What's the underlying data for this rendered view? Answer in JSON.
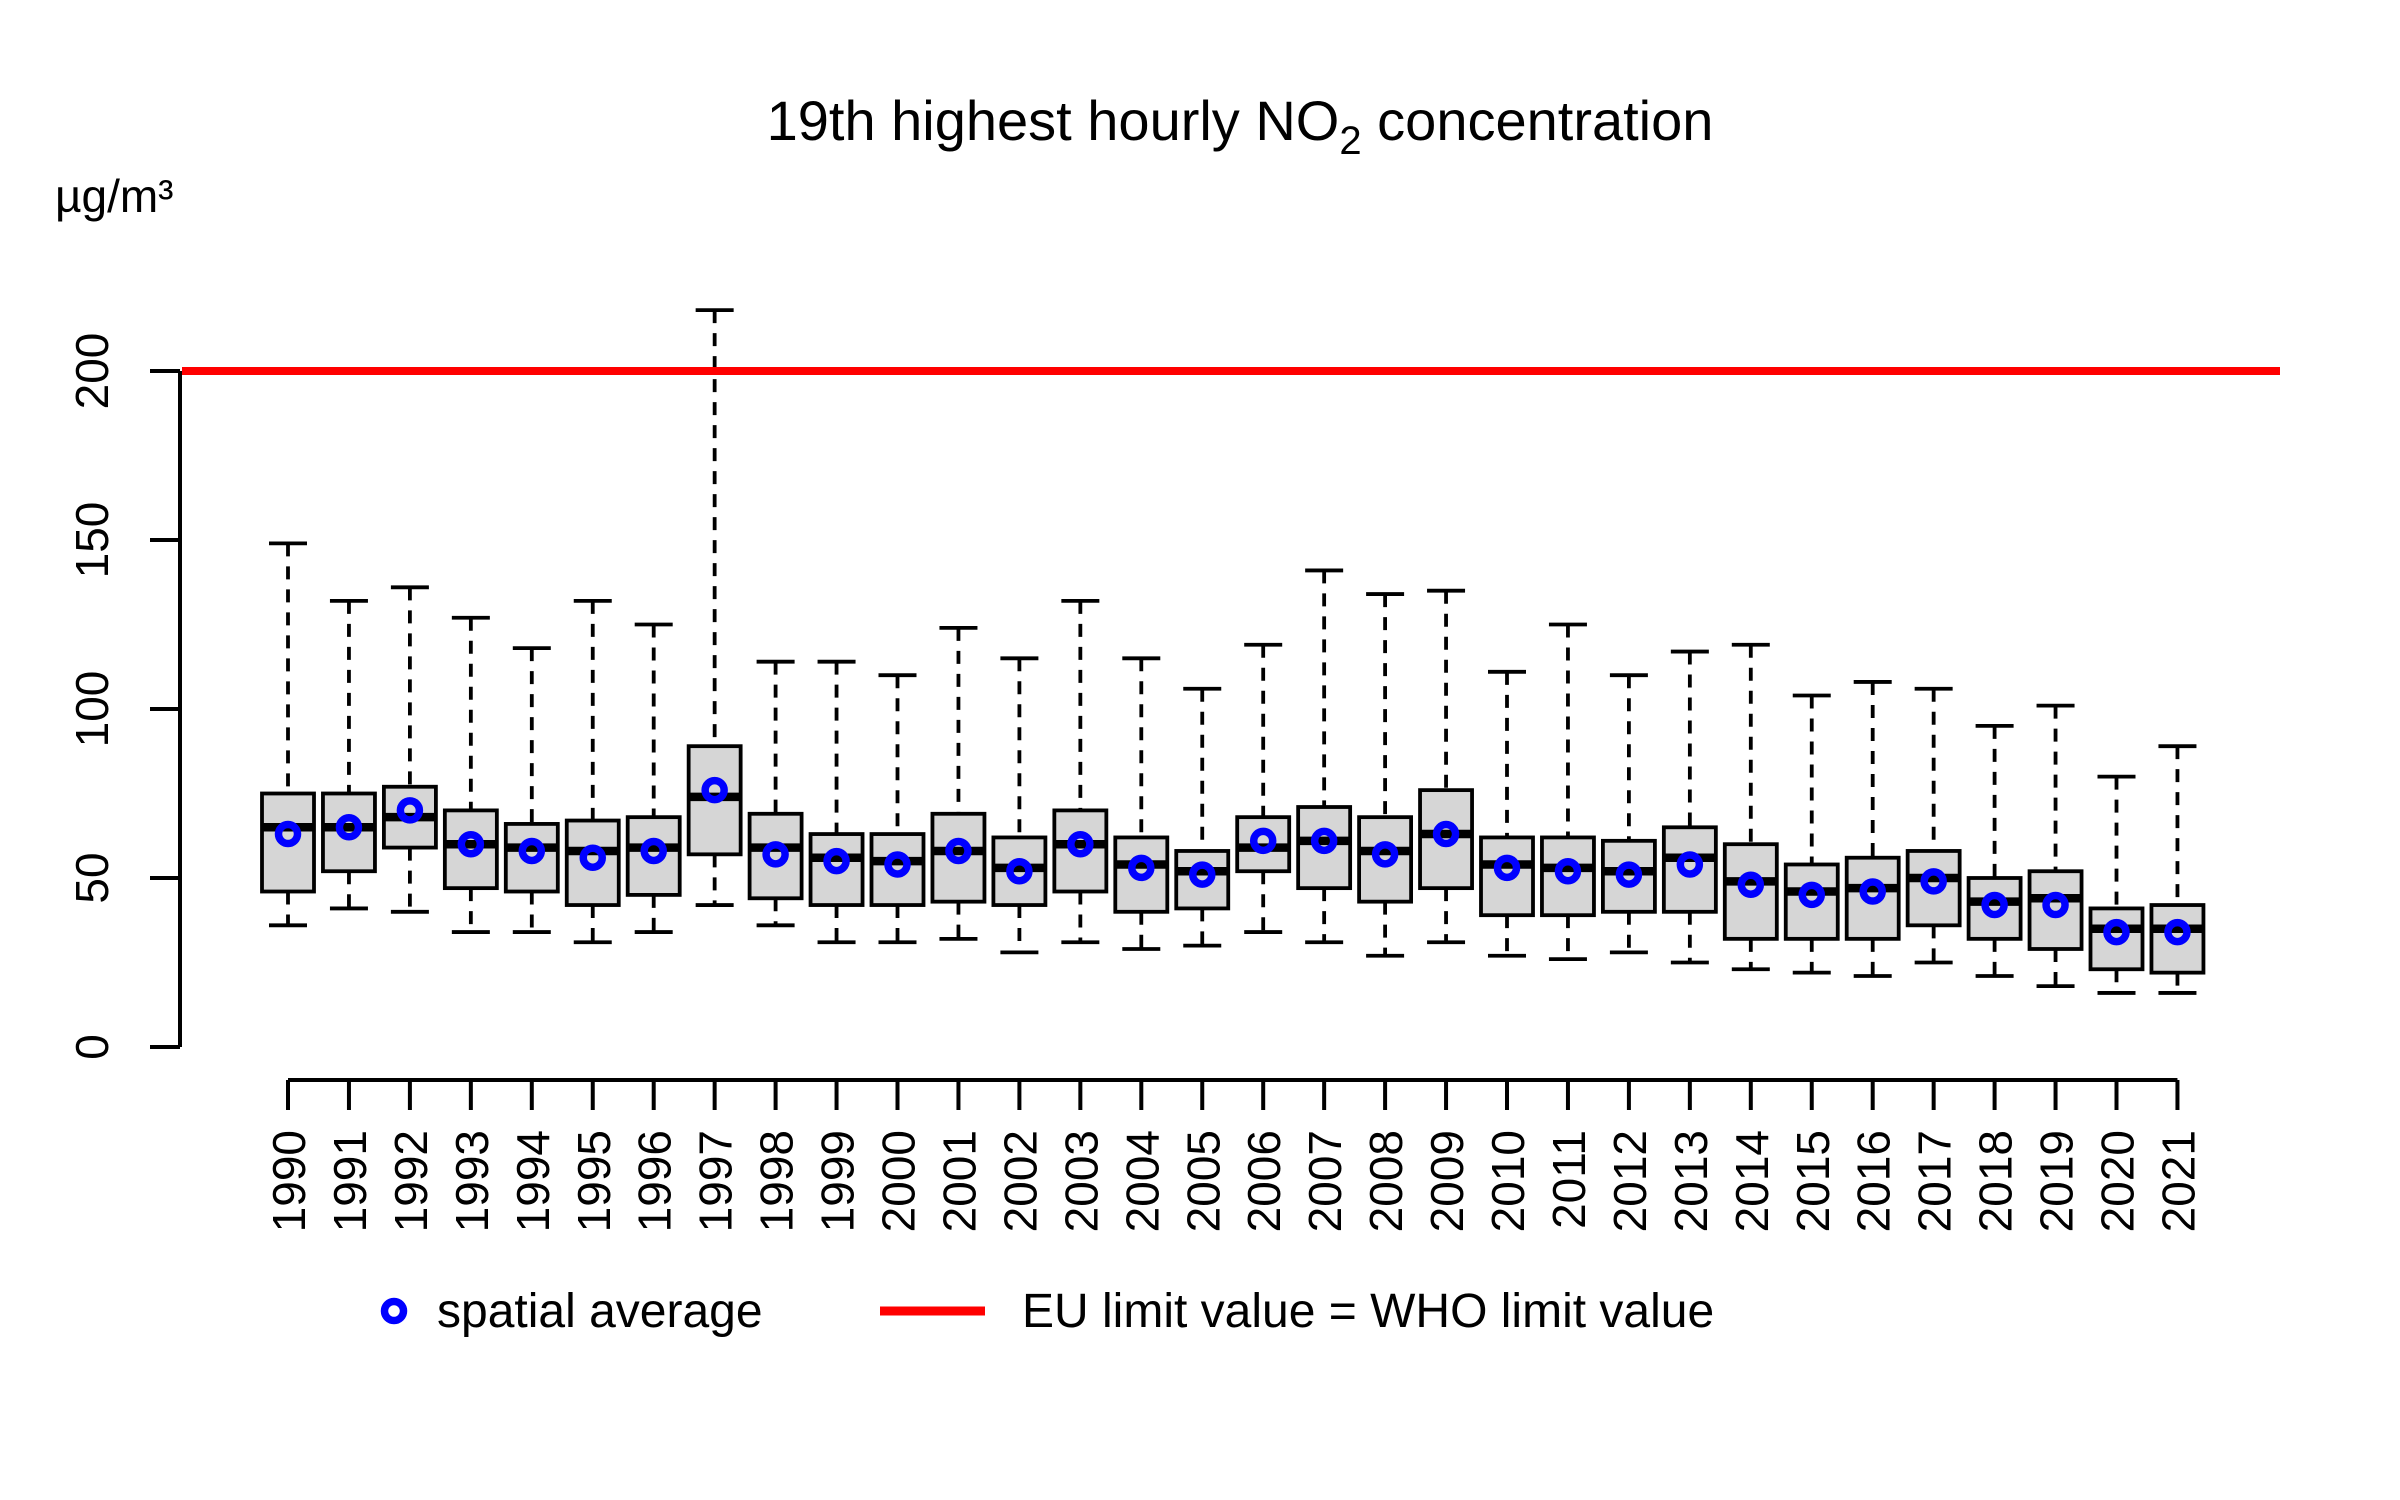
{
  "chart_data": {
    "type": "boxplot",
    "title": "19th highest hourly NO2 concentration",
    "title_parts": {
      "pre": "19th highest hourly NO",
      "sub": "2",
      "post": " concentration"
    },
    "ylabel": "µg/m³",
    "xlabel": "",
    "grid": false,
    "y_axis": {
      "ticks": [
        0,
        50,
        100,
        150,
        200
      ],
      "range": [
        0,
        220
      ]
    },
    "limit_line": {
      "value": 200
    },
    "legend": {
      "position": "bottom",
      "spatial_average_label": "spatial average",
      "limit_label": "EU limit value = WHO limit value"
    },
    "colors": {
      "box_fill": "#d6d6d6",
      "box_stroke": "#000000",
      "median": "#000000",
      "mean_marker": "#0000ff",
      "limit_line": "#ff0000",
      "axis": "#000000"
    },
    "categories": [
      1990,
      1991,
      1992,
      1993,
      1994,
      1995,
      1996,
      1997,
      1998,
      1999,
      2000,
      2001,
      2002,
      2003,
      2004,
      2005,
      2006,
      2007,
      2008,
      2009,
      2010,
      2011,
      2012,
      2013,
      2014,
      2015,
      2016,
      2017,
      2018,
      2019,
      2020,
      2021
    ],
    "series": [
      {
        "year": "1990",
        "min": 36,
        "q1": 46,
        "median": 65,
        "mean": 63,
        "q3": 75,
        "max": 149
      },
      {
        "year": "1991",
        "min": 41,
        "q1": 52,
        "median": 65,
        "mean": 65,
        "q3": 75,
        "max": 132
      },
      {
        "year": "1992",
        "min": 40,
        "q1": 59,
        "median": 68,
        "mean": 70,
        "q3": 77,
        "max": 136
      },
      {
        "year": "1993",
        "min": 34,
        "q1": 47,
        "median": 60,
        "mean": 60,
        "q3": 70,
        "max": 127
      },
      {
        "year": "1994",
        "min": 34,
        "q1": 46,
        "median": 59,
        "mean": 58,
        "q3": 66,
        "max": 118
      },
      {
        "year": "1995",
        "min": 31,
        "q1": 42,
        "median": 58,
        "mean": 56,
        "q3": 67,
        "max": 132
      },
      {
        "year": "1996",
        "min": 34,
        "q1": 45,
        "median": 59,
        "mean": 58,
        "q3": 68,
        "max": 125
      },
      {
        "year": "1997",
        "min": 42,
        "q1": 57,
        "median": 74,
        "mean": 76,
        "q3": 89,
        "max": 218
      },
      {
        "year": "1998",
        "min": 36,
        "q1": 44,
        "median": 59,
        "mean": 57,
        "q3": 69,
        "max": 114
      },
      {
        "year": "1999",
        "min": 31,
        "q1": 42,
        "median": 56,
        "mean": 55,
        "q3": 63,
        "max": 114
      },
      {
        "year": "2000",
        "min": 31,
        "q1": 42,
        "median": 55,
        "mean": 54,
        "q3": 63,
        "max": 110
      },
      {
        "year": "2001",
        "min": 32,
        "q1": 43,
        "median": 58,
        "mean": 58,
        "q3": 69,
        "max": 124
      },
      {
        "year": "2002",
        "min": 28,
        "q1": 42,
        "median": 53,
        "mean": 52,
        "q3": 62,
        "max": 115
      },
      {
        "year": "2003",
        "min": 31,
        "q1": 46,
        "median": 60,
        "mean": 60,
        "q3": 70,
        "max": 132
      },
      {
        "year": "2004",
        "min": 29,
        "q1": 40,
        "median": 54,
        "mean": 53,
        "q3": 62,
        "max": 115
      },
      {
        "year": "2005",
        "min": 30,
        "q1": 41,
        "median": 52,
        "mean": 51,
        "q3": 58,
        "max": 106
      },
      {
        "year": "2006",
        "min": 34,
        "q1": 52,
        "median": 59,
        "mean": 61,
        "q3": 68,
        "max": 119
      },
      {
        "year": "2007",
        "min": 31,
        "q1": 47,
        "median": 61,
        "mean": 61,
        "q3": 71,
        "max": 141
      },
      {
        "year": "2008",
        "min": 27,
        "q1": 43,
        "median": 58,
        "mean": 57,
        "q3": 68,
        "max": 134
      },
      {
        "year": "2009",
        "min": 31,
        "q1": 47,
        "median": 63,
        "mean": 63,
        "q3": 76,
        "max": 135
      },
      {
        "year": "2010",
        "min": 27,
        "q1": 39,
        "median": 54,
        "mean": 53,
        "q3": 62,
        "max": 111
      },
      {
        "year": "2011",
        "min": 26,
        "q1": 39,
        "median": 53,
        "mean": 52,
        "q3": 62,
        "max": 125
      },
      {
        "year": "2012",
        "min": 28,
        "q1": 40,
        "median": 52,
        "mean": 51,
        "q3": 61,
        "max": 110
      },
      {
        "year": "2013",
        "min": 25,
        "q1": 40,
        "median": 56,
        "mean": 54,
        "q3": 65,
        "max": 117
      },
      {
        "year": "2014",
        "min": 23,
        "q1": 32,
        "median": 49,
        "mean": 48,
        "q3": 60,
        "max": 119
      },
      {
        "year": "2015",
        "min": 22,
        "q1": 32,
        "median": 46,
        "mean": 45,
        "q3": 54,
        "max": 104
      },
      {
        "year": "2016",
        "min": 21,
        "q1": 32,
        "median": 47,
        "mean": 46,
        "q3": 56,
        "max": 108
      },
      {
        "year": "2017",
        "min": 25,
        "q1": 36,
        "median": 50,
        "mean": 49,
        "q3": 58,
        "max": 106
      },
      {
        "year": "2018",
        "min": 21,
        "q1": 32,
        "median": 43,
        "mean": 42,
        "q3": 50,
        "max": 95
      },
      {
        "year": "2019",
        "min": 18,
        "q1": 29,
        "median": 44,
        "mean": 42,
        "q3": 52,
        "max": 101
      },
      {
        "year": "2020",
        "min": 16,
        "q1": 23,
        "median": 35,
        "mean": 34,
        "q3": 41,
        "max": 80
      },
      {
        "year": "2021",
        "min": 16,
        "q1": 22,
        "median": 35,
        "mean": 34,
        "q3": 42,
        "max": 89
      }
    ]
  }
}
